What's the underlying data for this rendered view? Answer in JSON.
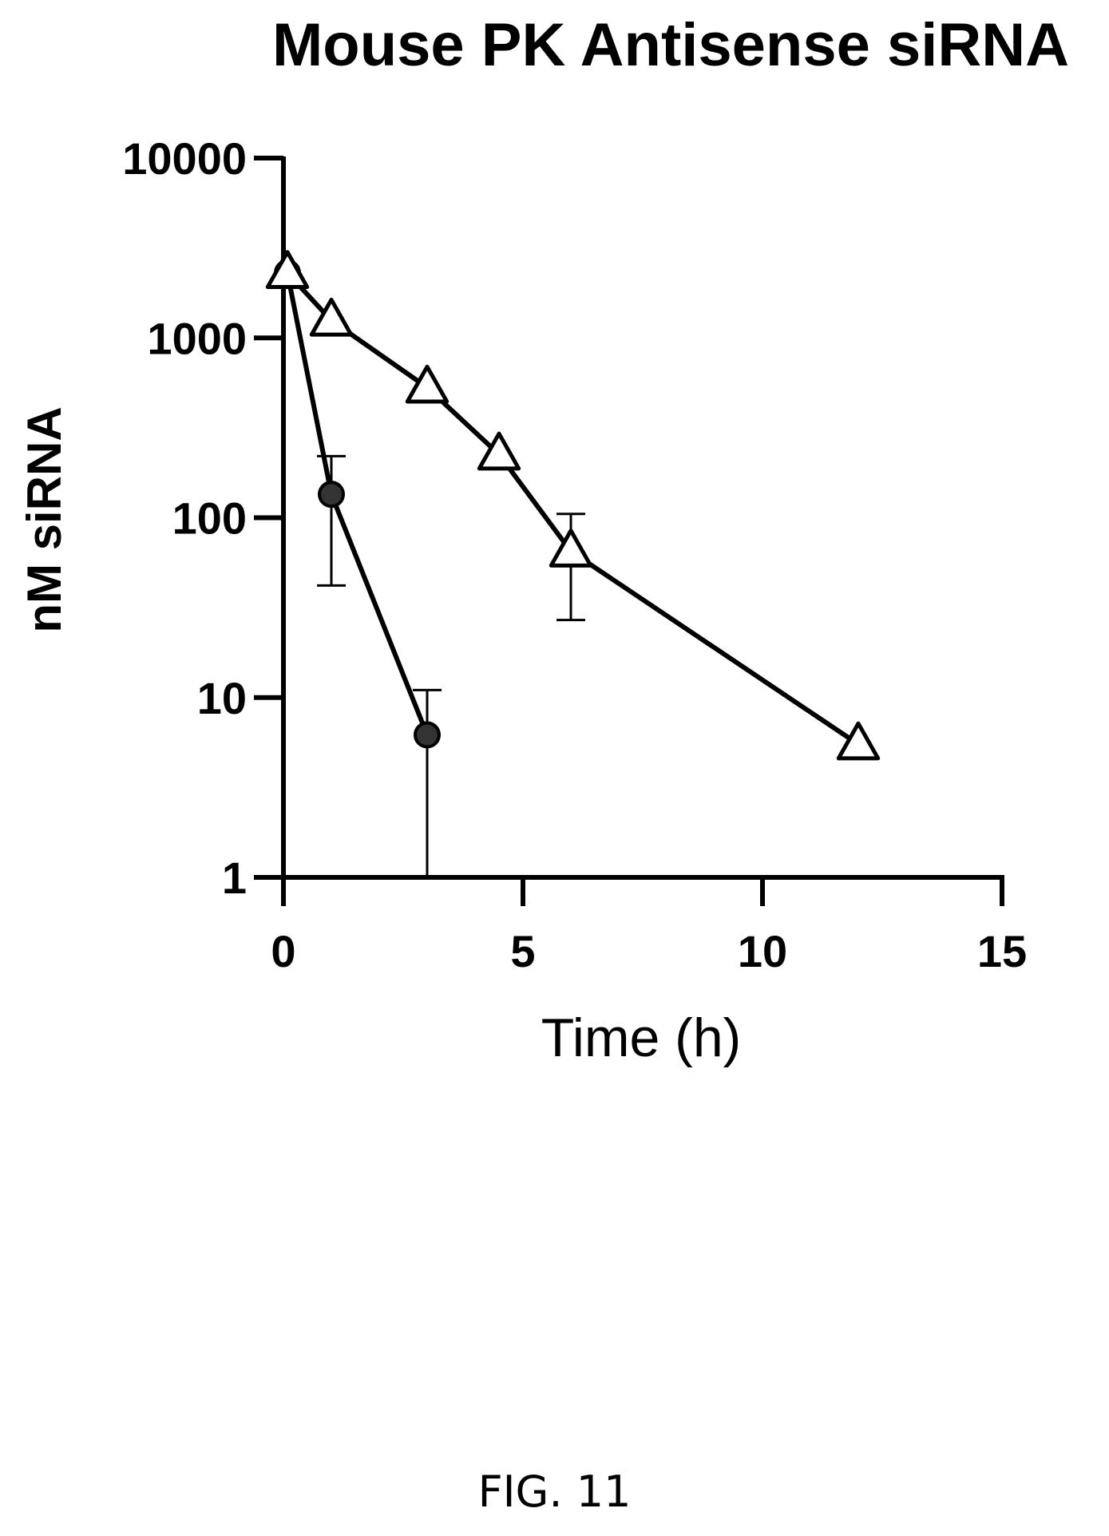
{
  "figure_label": "FIG. 11",
  "chart_data": {
    "type": "line",
    "title": "Mouse PK Antisense siRNA",
    "xlabel": "Time (h)",
    "ylabel": "nM siRNA",
    "xlim": [
      0,
      15
    ],
    "ylim": [
      1,
      10000
    ],
    "yscale": "log",
    "xticks": [
      0,
      5,
      10,
      15
    ],
    "xtick_labels": [
      "0",
      "5",
      "10",
      "15"
    ],
    "yticks": [
      1,
      10,
      100,
      1000,
      10000
    ],
    "ytick_labels": [
      "1",
      "10",
      "100",
      "1000",
      "10000"
    ],
    "grid": false,
    "legend": "none",
    "series": [
      {
        "marker": "circle",
        "color": "#000000",
        "x": [
          0.083,
          1,
          3
        ],
        "y": [
          2300,
          135,
          6.2
        ],
        "err_upper": [
          null,
          220,
          11
        ],
        "err_lower": [
          null,
          42,
          1
        ]
      },
      {
        "marker": "triangle",
        "color": "#000000",
        "x": [
          0.083,
          1,
          3,
          4.5,
          6,
          12
        ],
        "y": [
          2300,
          1250,
          530,
          225,
          65,
          5.5
        ],
        "err_upper": [
          null,
          null,
          null,
          null,
          105,
          null
        ],
        "err_lower": [
          null,
          null,
          null,
          null,
          27,
          null
        ]
      }
    ]
  }
}
